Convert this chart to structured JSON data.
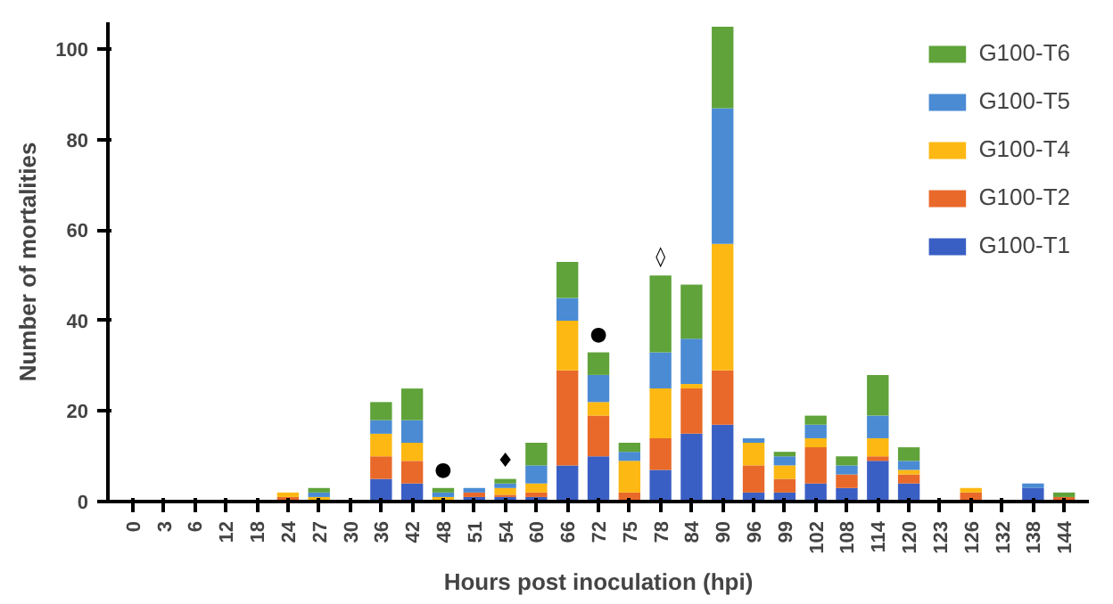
{
  "chart_data": {
    "type": "bar",
    "stacked": true,
    "xlabel": "Hours post inoculation (hpi)",
    "ylabel": "Number of mortalities",
    "categories": [
      "0",
      "3",
      "6",
      "12",
      "18",
      "24",
      "27",
      "30",
      "36",
      "42",
      "48",
      "51",
      "54",
      "60",
      "66",
      "72",
      "75",
      "78",
      "84",
      "90",
      "96",
      "99",
      "102",
      "108",
      "114",
      "120",
      "123",
      "126",
      "132",
      "138",
      "144"
    ],
    "series": [
      {
        "name": "G100-T1",
        "color": "#3a5fc4",
        "values": [
          0,
          0,
          0,
          0,
          0,
          0,
          0,
          0,
          5,
          4,
          0,
          1,
          1,
          1,
          8,
          10,
          0,
          7,
          15,
          17,
          2,
          2,
          4,
          3,
          9,
          4,
          0,
          0,
          0,
          3,
          0
        ]
      },
      {
        "name": "G100-T2",
        "color": "#e8692a",
        "values": [
          0,
          0,
          0,
          0,
          0,
          1,
          0,
          0,
          5,
          5,
          0,
          1,
          0.5,
          1,
          21,
          9,
          2,
          7,
          10,
          12,
          6,
          3,
          8,
          3,
          1,
          2,
          0,
          2,
          0,
          0,
          1
        ]
      },
      {
        "name": "G100-T4",
        "color": "#fdb813",
        "values": [
          0,
          0,
          0,
          0,
          0,
          1,
          1,
          0,
          5,
          4,
          1,
          0,
          1.5,
          2,
          11,
          3,
          7,
          11,
          1,
          28,
          5,
          3,
          2,
          0,
          4,
          1,
          0,
          1,
          0,
          0,
          0
        ]
      },
      {
        "name": "G100-T5",
        "color": "#4a8bd4",
        "values": [
          0,
          0,
          0,
          0,
          0,
          0,
          1,
          0,
          3,
          5,
          1,
          1,
          1,
          4,
          5,
          6,
          2,
          8,
          10,
          30,
          1,
          2,
          3,
          2,
          5,
          2,
          0,
          0,
          0,
          1,
          0
        ]
      },
      {
        "name": "G100-T6",
        "color": "#5fa33a",
        "values": [
          0,
          0,
          0,
          0,
          0,
          0,
          1,
          0,
          4,
          7,
          1,
          0,
          1,
          5,
          8,
          5,
          2,
          17,
          12,
          18,
          0,
          1,
          2,
          2,
          9,
          3,
          0,
          0,
          0,
          0,
          1
        ]
      }
    ],
    "ylim": [
      0,
      106
    ],
    "yticks": [
      0,
      20,
      40,
      60,
      80,
      100
    ],
    "annotations": [
      {
        "text": "●",
        "x": "48",
        "y": 3
      },
      {
        "text": "♦",
        "x": "54",
        "y": 5
      },
      {
        "text": "●",
        "x": "72",
        "y": 33
      },
      {
        "text": "◊",
        "x": "78",
        "y": 50
      }
    ],
    "grid": false,
    "legend": "top right"
  }
}
